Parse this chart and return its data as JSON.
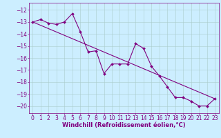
{
  "xlabel": "Windchill (Refroidissement éolien,°C)",
  "bg_color": "#cceeff",
  "line_color": "#800080",
  "grid_color": "#aacccc",
  "xlim": [
    -0.5,
    23.5
  ],
  "ylim": [
    -20.6,
    -11.4
  ],
  "yticks": [
    -20,
    -19,
    -18,
    -17,
    -16,
    -15,
    -14,
    -13,
    -12
  ],
  "xticks": [
    0,
    1,
    2,
    3,
    4,
    5,
    6,
    7,
    8,
    9,
    10,
    11,
    12,
    13,
    14,
    15,
    16,
    17,
    18,
    19,
    20,
    21,
    22,
    23
  ],
  "series1_x": [
    0,
    1,
    2,
    3,
    4,
    5,
    6,
    7,
    8,
    9,
    10,
    11,
    12,
    13,
    14,
    15,
    16,
    17,
    18,
    19,
    20,
    21,
    22,
    23
  ],
  "series1_y": [
    -13.0,
    -12.8,
    -13.1,
    -13.2,
    -13.0,
    -12.3,
    -13.8,
    -15.5,
    -15.4,
    -17.3,
    -16.5,
    -16.5,
    -16.5,
    -14.8,
    -15.2,
    -16.7,
    -17.5,
    -18.4,
    -19.3,
    -19.3,
    -19.6,
    -20.0,
    -20.0,
    -19.4
  ],
  "series2_x": [
    0,
    23
  ],
  "series2_y": [
    -13.0,
    -19.4
  ],
  "tick_fontsize": 5.5,
  "xlabel_fontsize": 6.0
}
